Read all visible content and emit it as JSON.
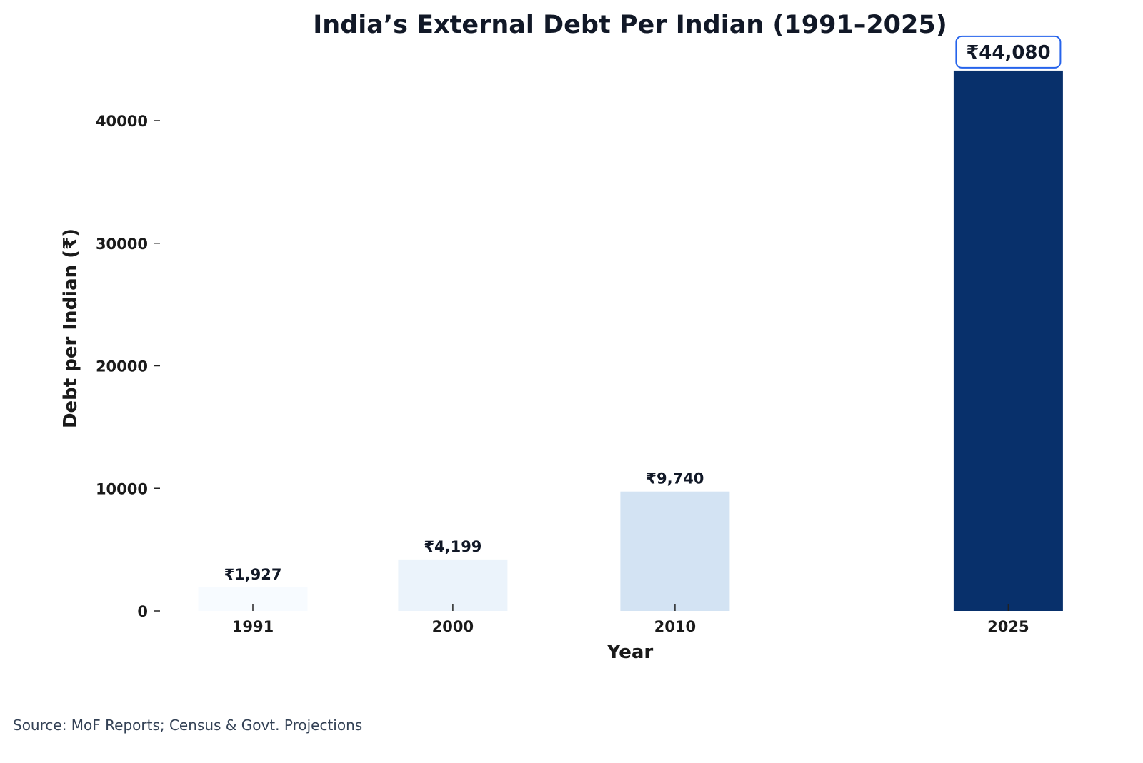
{
  "chart_data": {
    "type": "bar",
    "title": "India’s External Debt Per Indian (1991–2025)",
    "xlabel": "Year",
    "ylabel": "Debt per Indian (₹)",
    "categories": [
      "1991",
      "2000",
      "2010",
      "2025"
    ],
    "x": [
      1991,
      2000,
      2010,
      2025
    ],
    "values": [
      1927,
      4199,
      9740,
      44080
    ],
    "data_labels": [
      "₹1,927",
      "₹4,199",
      "₹9,740",
      "₹44,080"
    ],
    "highlighted_label_index": 3,
    "bar_colors": [
      "#f7fbff",
      "#ebf3fb",
      "#d3e3f3",
      "#08306b"
    ],
    "highlight_box_color": "#2563eb",
    "ylim": [
      0,
      46000
    ],
    "yticks": [
      0,
      10000,
      20000,
      30000,
      40000
    ],
    "ytick_labels": [
      "0",
      "10000",
      "20000",
      "30000",
      "40000"
    ],
    "grid": false,
    "legend": "none"
  },
  "source": "Source: MoF Reports; Census & Govt. Projections"
}
